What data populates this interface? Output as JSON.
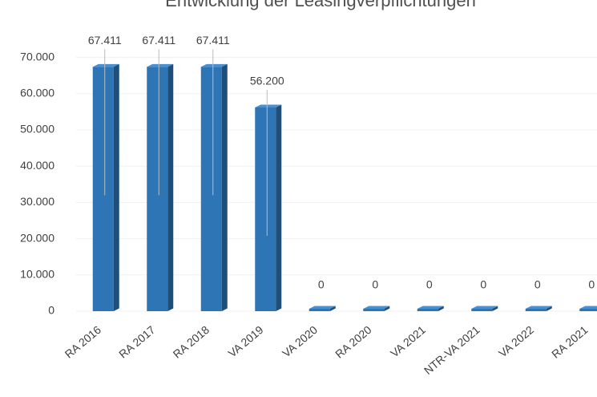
{
  "chart_data": {
    "type": "bar",
    "title": "Entwicklung der Leasingverpflichtungen",
    "categories": [
      "RA 2016",
      "RA 2017",
      "RA 2018",
      "VA 2019",
      "VA 2020",
      "RA 2020",
      "VA 2021",
      "NTR-VA 2021",
      "VA 2022",
      "RA 2021"
    ],
    "values": [
      67411,
      67411,
      67411,
      56200,
      0,
      0,
      0,
      0,
      0,
      0
    ],
    "value_labels": [
      "67.411",
      "67.411",
      "67.411",
      "56.200",
      "0",
      "0",
      "0",
      "0",
      "0",
      "0"
    ],
    "color": "#2e75b6",
    "ylim": [
      0,
      77000
    ],
    "yticks": [
      0,
      {
        "value": 10000,
        "label": "10.000"
      },
      {
        "value": 20000,
        "label": "20.000"
      },
      {
        "value": 30000,
        "label": "30.000"
      },
      {
        "value": 40000,
        "label": "40.000"
      },
      {
        "value": 50000,
        "label": "50.000"
      },
      {
        "value": 60000,
        "label": "60.000"
      },
      {
        "value": 70000,
        "label": "70.000"
      }
    ],
    "grid": true
  }
}
